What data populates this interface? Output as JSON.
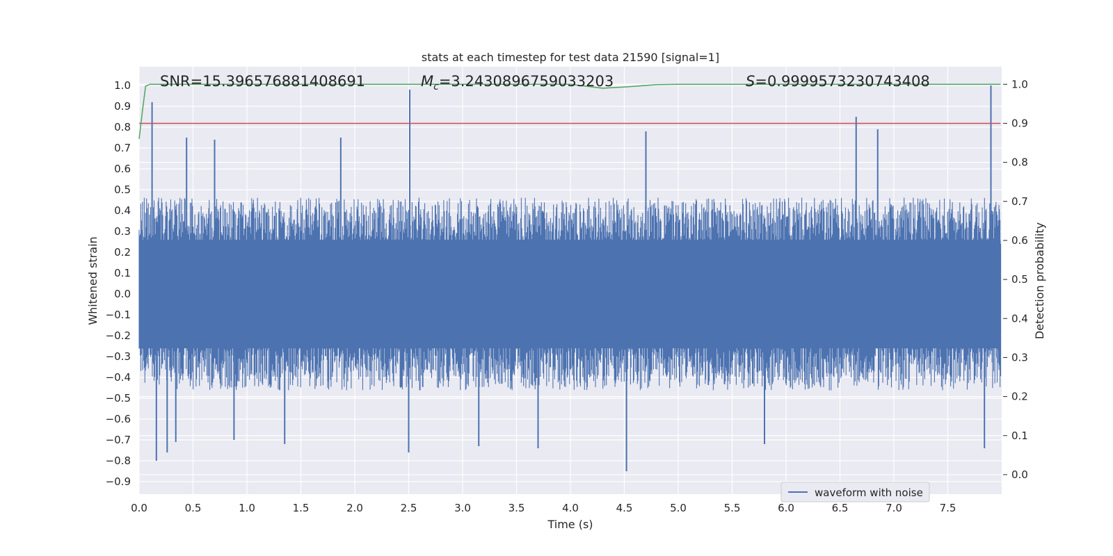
{
  "chart_data": {
    "type": "line",
    "title": "stats at each timestep for test data 21590 [signal=1]",
    "xlabel": "Time (s)",
    "ylabel": "Whitened strain",
    "y2label": "Detection probability",
    "xlim": [
      0.0,
      8.0
    ],
    "ylim": [
      -0.96,
      1.09
    ],
    "y2lim": [
      -0.05,
      1.045
    ],
    "xticks": [
      0.0,
      0.5,
      1.0,
      1.5,
      2.0,
      2.5,
      3.0,
      3.5,
      4.0,
      4.5,
      5.0,
      5.5,
      6.0,
      6.5,
      7.0,
      7.5
    ],
    "xtick_labels": [
      "0.0",
      "0.5",
      "1.0",
      "1.5",
      "2.0",
      "2.5",
      "3.0",
      "3.5",
      "4.0",
      "4.5",
      "5.0",
      "5.5",
      "6.0",
      "6.5",
      "7.0",
      "7.5"
    ],
    "yticks": [
      1.0,
      0.9,
      0.8,
      0.7,
      0.6,
      0.5,
      0.4,
      0.3,
      0.2,
      0.1,
      0.0,
      -0.1,
      -0.2,
      -0.3,
      -0.4,
      -0.5,
      -0.6,
      -0.7,
      -0.8,
      -0.9
    ],
    "ytick_labels": [
      "1.0",
      "0.9",
      "0.8",
      "0.7",
      "0.6",
      "0.5",
      "0.4",
      "0.3",
      "0.2",
      "0.1",
      "0.0",
      "−0.1",
      "−0.2",
      "−0.3",
      "−0.4",
      "−0.5",
      "−0.6",
      "−0.7",
      "−0.8",
      "−0.9"
    ],
    "y2ticks": [
      1.0,
      0.9,
      0.8,
      0.7,
      0.6,
      0.5,
      0.4,
      0.3,
      0.2,
      0.1,
      0.0
    ],
    "y2tick_labels": [
      "1.0",
      "0.9",
      "0.8",
      "0.7",
      "0.6",
      "0.5",
      "0.4",
      "0.3",
      "0.2",
      "0.1",
      "0.0"
    ],
    "grid": true,
    "legend": {
      "position": "lower-right",
      "entries": [
        "waveform with noise"
      ]
    },
    "annotations": {
      "snr": "SNR=15.396576881408691",
      "mc_symbol": "M",
      "mc_sub": "c",
      "mc_value": "=3.2430896759033203",
      "s_symbol": "S",
      "s_value": "=0.9999573230743408"
    },
    "series": [
      {
        "name": "waveform with noise",
        "axis": "left",
        "color": "#4c72b0",
        "description_samples": {
          "t_range": [
            0.0,
            7.99
          ],
          "band_upper": 0.42,
          "band_lower": -0.42,
          "peak_x": [
            0.12,
            0.44,
            0.7,
            1.87,
            2.51,
            4.7,
            6.65,
            6.85,
            7.9
          ],
          "peak_y": [
            0.92,
            0.75,
            0.74,
            0.75,
            0.98,
            0.78,
            0.85,
            0.79,
            1.0
          ],
          "trough_x": [
            0.16,
            0.26,
            0.34,
            0.88,
            1.35,
            2.5,
            3.15,
            3.7,
            4.52,
            5.8,
            7.84
          ],
          "trough_y": [
            -0.8,
            -0.76,
            -0.71,
            -0.7,
            -0.72,
            -0.76,
            -0.73,
            -0.74,
            -0.85,
            -0.72,
            -0.74
          ]
        }
      },
      {
        "name": "detection probability",
        "axis": "right",
        "color": "#55a868",
        "x": [
          0.0,
          0.03,
          0.06,
          0.1,
          0.5,
          1.0,
          2.0,
          3.0,
          4.0,
          4.15,
          4.3,
          4.5,
          4.8,
          5.0,
          6.0,
          7.0,
          7.99
        ],
        "y": [
          0.86,
          0.93,
          0.995,
          1.0,
          1.0,
          1.0,
          1.0,
          1.0,
          1.0,
          0.995,
          0.99,
          0.993,
          0.999,
          1.0,
          1.0,
          1.0,
          1.0
        ]
      },
      {
        "name": "threshold",
        "axis": "right",
        "color": "#c44e52",
        "x": [
          0.0,
          7.99
        ],
        "y": [
          0.9,
          0.9
        ]
      }
    ]
  }
}
